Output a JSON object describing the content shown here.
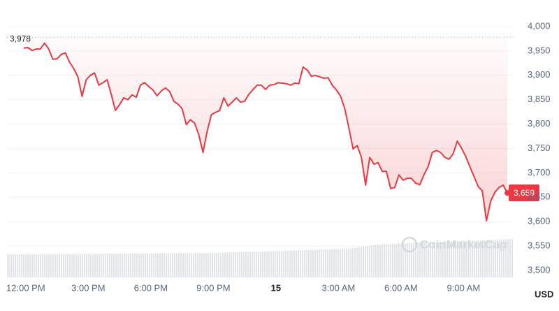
{
  "chart_data": {
    "type": "line",
    "color": "#ea3943",
    "grid": true,
    "unit": "USD",
    "watermark": "CoinMarketCap",
    "open_price": {
      "value": 3978,
      "label": "3,978"
    },
    "current_price": {
      "value": 3659,
      "label": "3,659"
    },
    "xlim": [
      -0.9,
      23.4
    ],
    "xticks": [
      {
        "value": 0,
        "label": "12:00 PM"
      },
      {
        "value": 3,
        "label": "3:00 PM"
      },
      {
        "value": 6,
        "label": "6:00 PM"
      },
      {
        "value": 9,
        "label": "9:00 PM"
      },
      {
        "value": 12,
        "label": "15"
      },
      {
        "value": 15,
        "label": "3:00 AM"
      },
      {
        "value": 18,
        "label": "6:00 AM"
      },
      {
        "value": 21,
        "label": "9:00 AM"
      }
    ],
    "ylim": [
      3500,
      4000
    ],
    "yticks": [
      {
        "value": 3500,
        "label": "3,500"
      },
      {
        "value": 3550,
        "label": "3,550"
      },
      {
        "value": 3600,
        "label": "3,600"
      },
      {
        "value": 3650,
        "label": "3,650"
      },
      {
        "value": 3700,
        "label": "3,700"
      },
      {
        "value": 3750,
        "label": "3,750"
      },
      {
        "value": 3800,
        "label": "3,800"
      },
      {
        "value": 3850,
        "label": "3,850"
      },
      {
        "value": 3900,
        "label": "3,900"
      },
      {
        "value": 3950,
        "label": "3,950"
      },
      {
        "value": 4000,
        "label": "4,000"
      }
    ],
    "x": [
      -0.1,
      0.1,
      0.3,
      0.5,
      0.7,
      0.9,
      1.1,
      1.3,
      1.5,
      1.7,
      1.9,
      2.1,
      2.3,
      2.5,
      2.7,
      2.9,
      3.1,
      3.3,
      3.5,
      3.7,
      3.9,
      4.1,
      4.3,
      4.5,
      4.7,
      4.9,
      5.1,
      5.3,
      5.5,
      5.7,
      5.9,
      6.1,
      6.3,
      6.5,
      6.7,
      6.9,
      7.1,
      7.3,
      7.5,
      7.7,
      7.9,
      8.1,
      8.3,
      8.5,
      8.7,
      8.9,
      9.1,
      9.3,
      9.5,
      9.7,
      9.9,
      10.1,
      10.3,
      10.5,
      10.7,
      10.9,
      11.1,
      11.3,
      11.5,
      11.7,
      11.9,
      12.1,
      12.3,
      12.5,
      12.7,
      12.9,
      13.1,
      13.3,
      13.5,
      13.7,
      13.9,
      14.1,
      14.3,
      14.5,
      14.7,
      14.9,
      15.1,
      15.3,
      15.5,
      15.7,
      15.9,
      16.1,
      16.3,
      16.5,
      16.7,
      16.9,
      17.1,
      17.3,
      17.5,
      17.7,
      17.9,
      18.1,
      18.3,
      18.5,
      18.7,
      18.9,
      19.1,
      19.3,
      19.5,
      19.7,
      19.9,
      20.1,
      20.3,
      20.5,
      20.7,
      20.9,
      21.1,
      21.3,
      21.5,
      21.7,
      21.9,
      22.1,
      22.3,
      22.5,
      22.7,
      22.9,
      23.1
    ],
    "values": [
      3956,
      3957,
      3951,
      3954,
      3954,
      3966,
      3954,
      3933,
      3934,
      3943,
      3946,
      3927,
      3914,
      3897,
      3857,
      3891,
      3900,
      3905,
      3880,
      3885,
      3891,
      3861,
      3828,
      3840,
      3854,
      3850,
      3860,
      3855,
      3880,
      3885,
      3877,
      3870,
      3858,
      3868,
      3874,
      3867,
      3847,
      3841,
      3832,
      3799,
      3809,
      3802,
      3778,
      3742,
      3785,
      3819,
      3824,
      3828,
      3854,
      3837,
      3845,
      3854,
      3845,
      3847,
      3861,
      3871,
      3880,
      3880,
      3871,
      3880,
      3881,
      3885,
      3884,
      3883,
      3880,
      3884,
      3883,
      3917,
      3911,
      3898,
      3900,
      3897,
      3894,
      3895,
      3880,
      3870,
      3857,
      3832,
      3792,
      3749,
      3756,
      3732,
      3675,
      3732,
      3718,
      3721,
      3703,
      3703,
      3668,
      3670,
      3696,
      3685,
      3689,
      3689,
      3679,
      3676,
      3696,
      3713,
      3742,
      3746,
      3742,
      3732,
      3728,
      3739,
      3765,
      3751,
      3734,
      3713,
      3693,
      3672,
      3663,
      3602,
      3642,
      3660,
      3670,
      3675,
      3659
    ]
  }
}
